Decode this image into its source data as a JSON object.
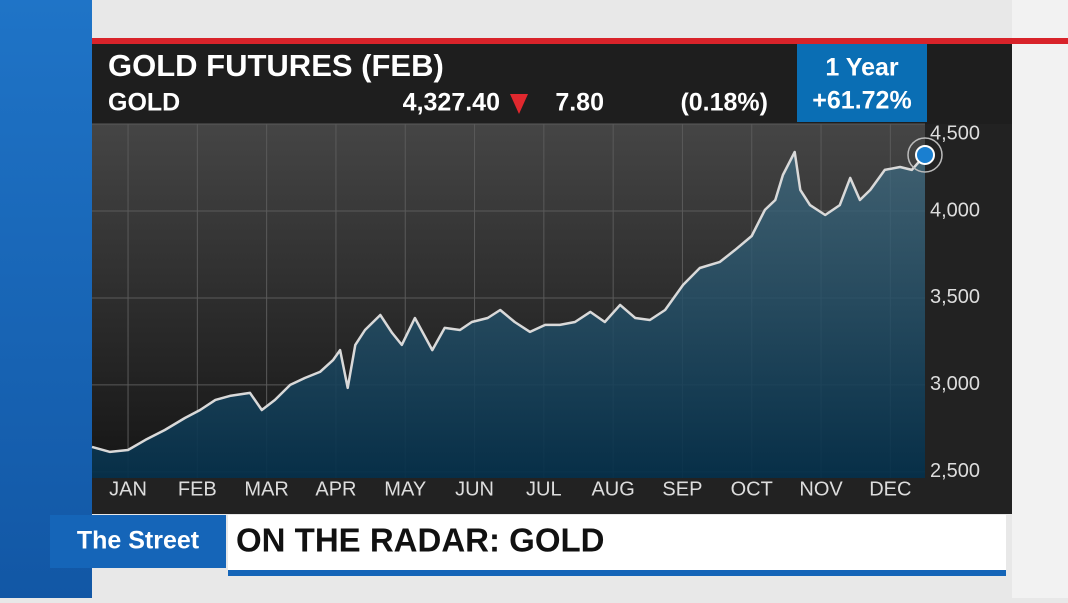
{
  "header": {
    "title": "GOLD FUTURES (FEB)",
    "symbol": "GOLD",
    "price": "4,327.40",
    "change": "7.80",
    "change_pct": "(0.18%)",
    "period": "1 Year",
    "period_change": "+61.72%"
  },
  "lower_third": {
    "brand": "The Street",
    "headline": "ON THE RADAR: GOLD"
  },
  "chart_data": {
    "type": "line",
    "x": [
      -0.52,
      -0.26,
      0,
      0.25,
      0.53,
      0.82,
      1.04,
      1.26,
      1.47,
      1.76,
      1.93,
      2.12,
      2.34,
      2.55,
      2.77,
      2.96,
      3.06,
      3.17,
      3.28,
      3.42,
      3.64,
      3.81,
      3.95,
      4.14,
      4.39,
      4.57,
      4.79,
      4.96,
      5.19,
      5.37,
      5.58,
      5.8,
      6.02,
      6.23,
      6.45,
      6.67,
      6.88,
      7.1,
      7.32,
      7.53,
      7.75,
      8.01,
      8.25,
      8.54,
      8.76,
      9,
      9.19,
      9.34,
      9.45,
      9.62,
      9.7,
      9.84,
      10.06,
      10.27,
      10.42,
      10.56,
      10.71,
      10.92,
      11.14,
      11.31,
      11.5
    ],
    "series": [
      {
        "name": "GOLD",
        "color": "#d9d9d9",
        "values": [
          2644,
          2615,
          2626,
          2684,
          2741,
          2810,
          2856,
          2914,
          2937,
          2954,
          2856,
          2914,
          3000,
          3040,
          3075,
          3144,
          3200,
          2983,
          3230,
          3316,
          3402,
          3299,
          3230,
          3385,
          3200,
          3328,
          3316,
          3362,
          3385,
          3431,
          3362,
          3305,
          3345,
          3345,
          3362,
          3420,
          3362,
          3460,
          3385,
          3373,
          3431,
          3575,
          3672,
          3707,
          3776,
          3856,
          4006,
          4063,
          4207,
          4339,
          4121,
          4034,
          3977,
          4034,
          4190,
          4063,
          4121,
          4236,
          4253,
          4236,
          4322
        ]
      }
    ],
    "xlim": [
      -0.52,
      11.5
    ],
    "xticks": [
      {
        "value": 0,
        "label": "JAN"
      },
      {
        "value": 1,
        "label": "FEB"
      },
      {
        "value": 2,
        "label": "MAR"
      },
      {
        "value": 3,
        "label": "APR"
      },
      {
        "value": 4,
        "label": "MAY"
      },
      {
        "value": 5,
        "label": "JUN"
      },
      {
        "value": 6,
        "label": "JUL"
      },
      {
        "value": 7,
        "label": "AUG"
      },
      {
        "value": 8,
        "label": "SEP"
      },
      {
        "value": 9,
        "label": "OCT"
      },
      {
        "value": 10,
        "label": "NOV"
      },
      {
        "value": 11,
        "label": "DEC"
      }
    ],
    "ylim": [
      2465,
      4500
    ],
    "yticks": [
      {
        "value": 2500,
        "label": "2,500"
      },
      {
        "value": 3000,
        "label": "3,000"
      },
      {
        "value": 3500,
        "label": "3,500"
      },
      {
        "value": 4000,
        "label": "4,000"
      },
      {
        "value": 4500,
        "label": "4,500"
      }
    ],
    "grid": true
  }
}
